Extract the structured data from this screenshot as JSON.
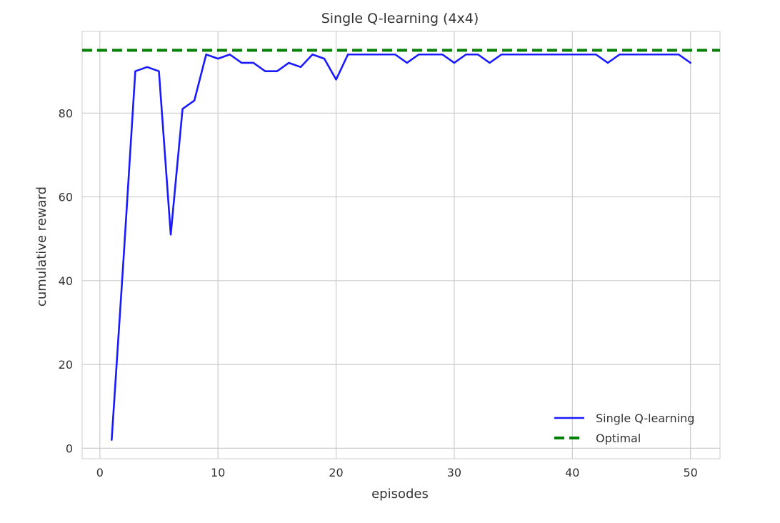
{
  "chart_data": {
    "type": "line",
    "title": "Single Q-learning (4x4)",
    "xlabel": "episodes",
    "ylabel": "cumulative reward",
    "xlim": [
      -1.5,
      52.5
    ],
    "ylim": [
      -2.5,
      99.5
    ],
    "xticks": [
      0,
      10,
      20,
      30,
      40,
      50
    ],
    "yticks": [
      0,
      20,
      40,
      60,
      80
    ],
    "grid": true,
    "legend_position": "lower right",
    "series": [
      {
        "name": "Single Q-learning",
        "color": "#1a1aff",
        "style": "solid",
        "x": [
          1,
          2,
          3,
          4,
          5,
          6,
          7,
          8,
          9,
          10,
          11,
          12,
          13,
          14,
          15,
          16,
          17,
          18,
          19,
          20,
          21,
          22,
          23,
          24,
          25,
          26,
          27,
          28,
          29,
          30,
          31,
          32,
          33,
          34,
          35,
          36,
          37,
          38,
          39,
          40,
          41,
          42,
          43,
          44,
          45,
          46,
          47,
          48,
          49,
          50
        ],
        "y": [
          2,
          45,
          90,
          91,
          90,
          51,
          81,
          83,
          94,
          93,
          94,
          92,
          92,
          90,
          90,
          92,
          91,
          94,
          93,
          88,
          94,
          94,
          94,
          94,
          94,
          92,
          94,
          94,
          94,
          92,
          94,
          94,
          92,
          94,
          94,
          94,
          94,
          94,
          94,
          94,
          94,
          94,
          92,
          94,
          94,
          94,
          94,
          94,
          94,
          92
        ]
      },
      {
        "name": "Optimal",
        "color": "#008000",
        "style": "dashed",
        "y_constant": 95
      }
    ]
  }
}
